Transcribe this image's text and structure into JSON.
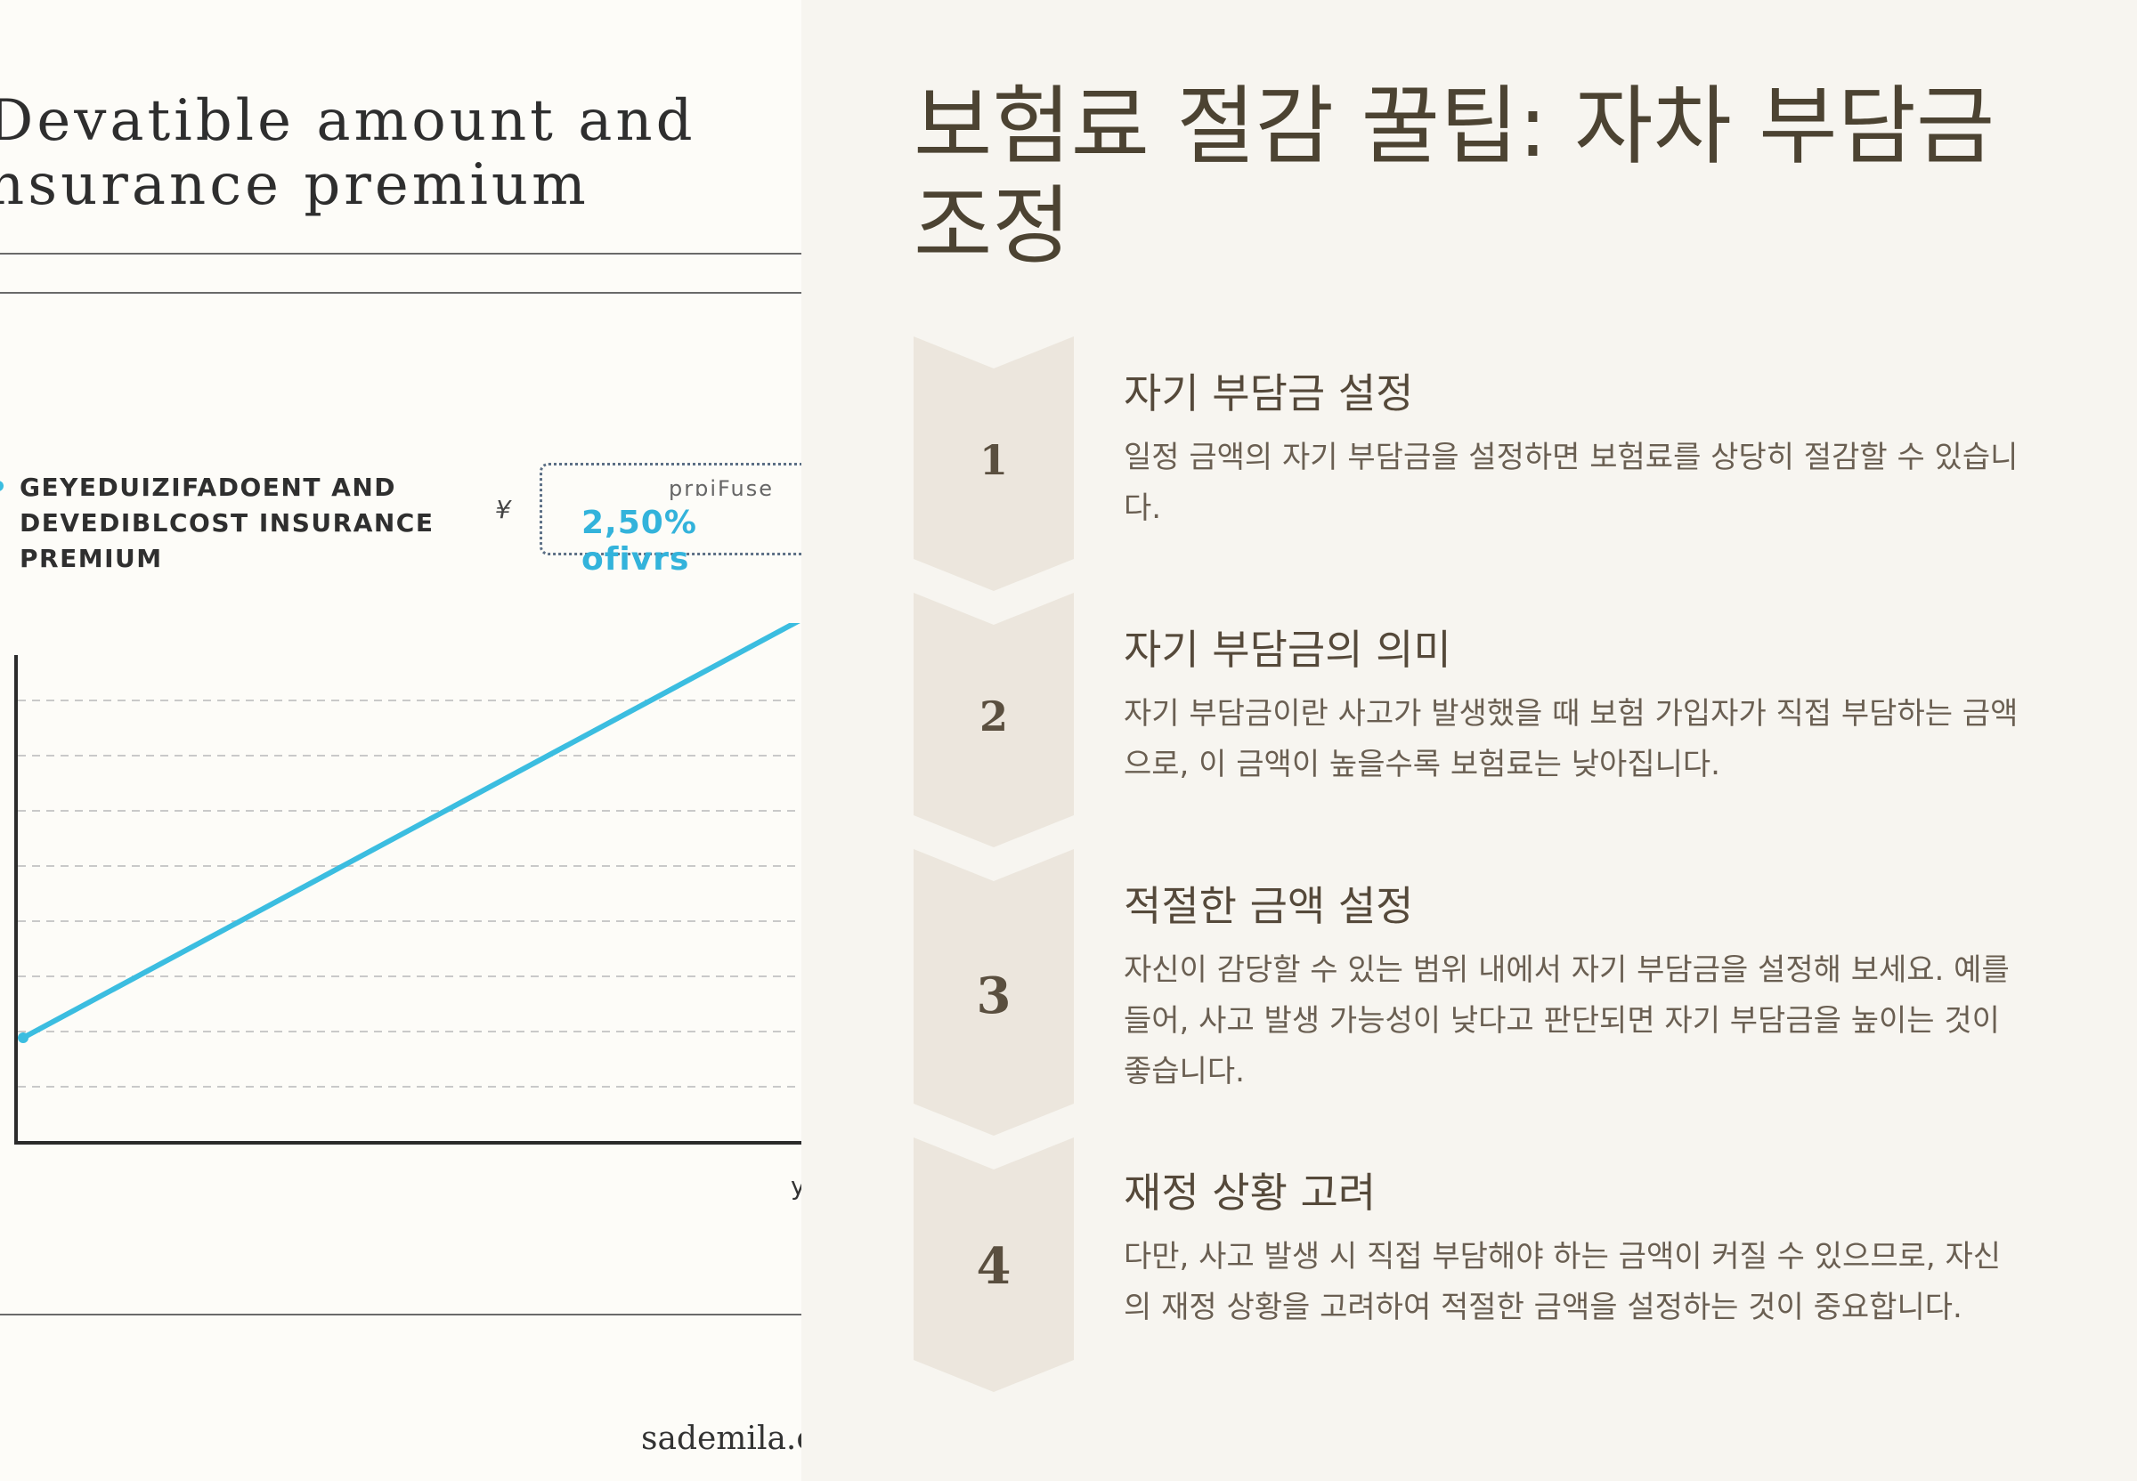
{
  "left_image": {
    "title": "Devatible amount and\nnsurance premium",
    "legend_text": "GEYEDUIZIFADOENT AND\nDEVEDIBLCOST INSURANCE\nPREMIUM",
    "legend_mark": "¥",
    "badge_small": "prɒiFuse",
    "badge_value": "2,50% ofivrs",
    "axis_tail": "y",
    "credit": "sademila.c",
    "line_color": "#3bbde0"
  },
  "title": "보험료 절감 꿀팁: 자차 부담금 조정",
  "steps": [
    {
      "number": "1",
      "title": "자기 부담금 설정",
      "description": "일정 금액의 자기 부담금을 설정하면 보험료를 상당히 절감할 수 있습니다."
    },
    {
      "number": "2",
      "title": "자기 부담금의 의미",
      "description": "자기 부담금이란 사고가 발생했을 때 보험 가입자가 직접 부담하는 금액으로, 이 금액이 높을수록 보험료는 낮아집니다."
    },
    {
      "number": "3",
      "title": "적절한 금액 설정",
      "description": "자신이 감당할 수 있는 범위 내에서 자기 부담금을 설정해 보세요. 예를 들어, 사고 발생 가능성이 낮다고 판단되면 자기 부담금을 높이는 것이 좋습니다."
    },
    {
      "number": "4",
      "title": "재정 상황 고려",
      "description": "다만, 사고 발생 시 직접 부담해야 하는 금액이 커질 수 있으므로, 자신의 재정 상황을 고려하여 적절한 금액을 설정하는 것이 중요합니다."
    }
  ],
  "colors": {
    "background": "#f7f5f0",
    "chevron": "#ece6dd",
    "title": "#4c4332",
    "text": "#6a5f52"
  }
}
